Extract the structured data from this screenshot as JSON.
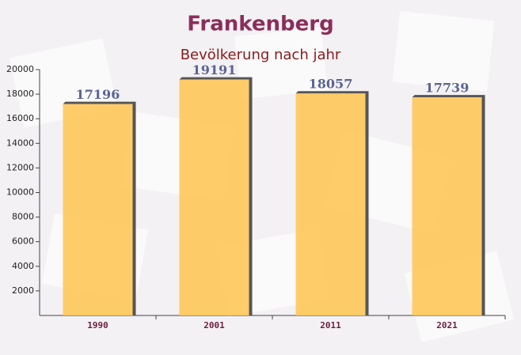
{
  "chart_data": {
    "type": "bar",
    "title": "Frankenberg",
    "subtitle": "Bevölkerung nach jahr",
    "categories": [
      "1990",
      "2001",
      "2011",
      "2021"
    ],
    "values": [
      17196,
      19191,
      18057,
      17739
    ],
    "color": "#ffc65a",
    "ylim": [
      0,
      20000
    ],
    "yticks": [
      2000,
      4000,
      6000,
      8000,
      10000,
      12000,
      14000,
      16000,
      18000,
      20000
    ],
    "grid": false
  }
}
